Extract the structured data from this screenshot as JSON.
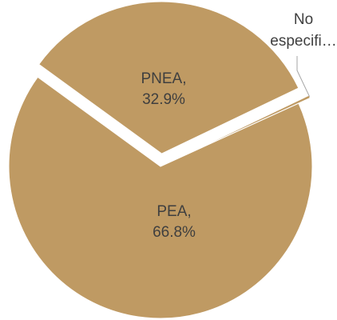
{
  "chart_data": {
    "type": "pie",
    "slices": [
      {
        "label": "PEA",
        "value": 66.8,
        "value_text": "66.8%",
        "label_parts": [
          "PEA,",
          "66.8%"
        ],
        "exploded": false
      },
      {
        "label": "PNEA",
        "value": 32.9,
        "value_text": "32.9%",
        "label_parts": [
          "PNEA,",
          "32.9%"
        ],
        "exploded": true
      },
      {
        "label": "No especifi…",
        "value": 0.3,
        "value_text": "",
        "label_parts": [
          "No",
          "especifi…"
        ],
        "exploded": true
      }
    ],
    "title": "",
    "legend": "none",
    "colors": {
      "slice_fill": "#bf9a63",
      "separator": "#ffffff",
      "label_text": "#3f3f3f",
      "leader_line": "#a6a6a6"
    }
  }
}
